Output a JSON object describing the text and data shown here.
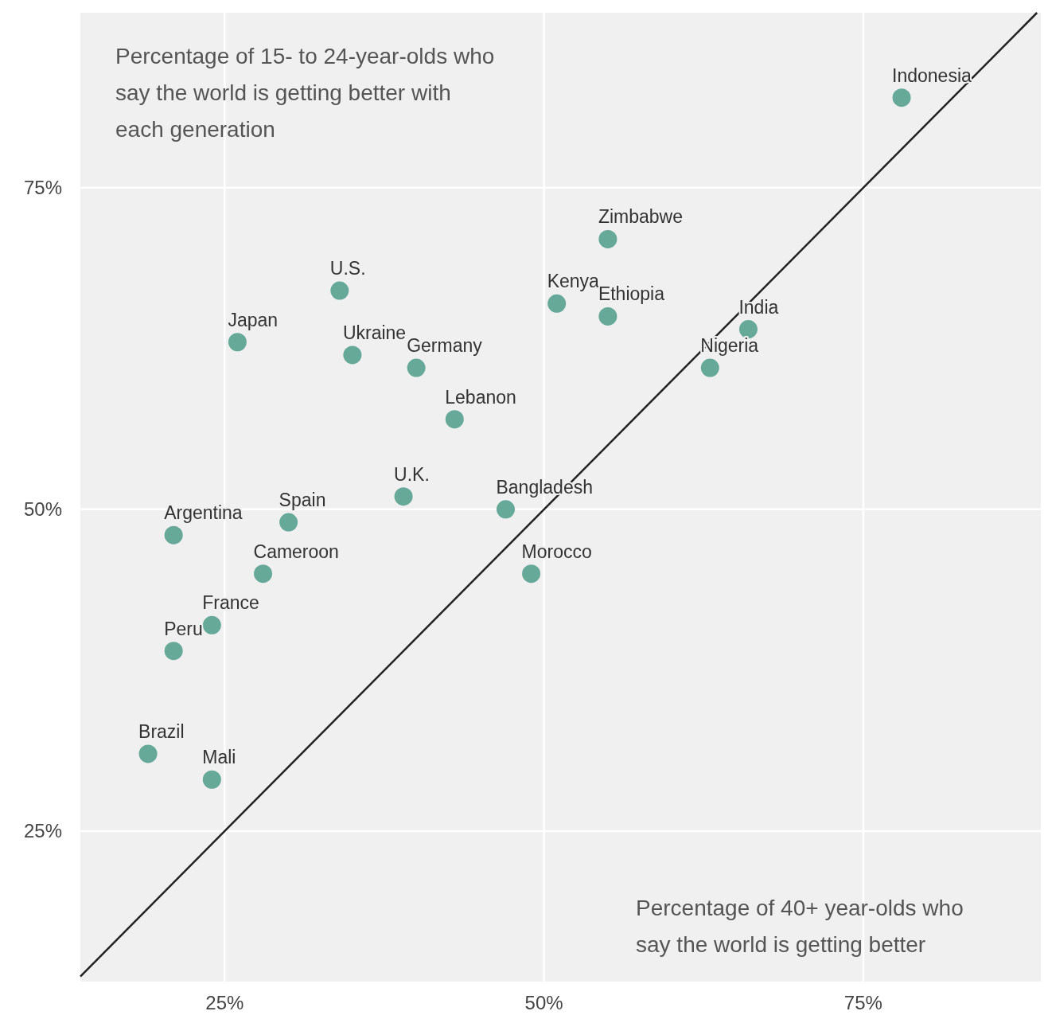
{
  "chart_data": {
    "type": "scatter",
    "xlabel": "Percentage of 40+ year-olds who say the world is getting better",
    "ylabel": "Percentage of 15- to 24-year-olds who say the world is getting better with each generation",
    "xlim": [
      13.7,
      88.9
    ],
    "ylim": [
      13.3,
      88.6
    ],
    "xticks": [
      {
        "value": 25,
        "label": "25%"
      },
      {
        "value": 50,
        "label": "50%"
      },
      {
        "value": 75,
        "label": "75%"
      }
    ],
    "yticks": [
      {
        "value": 25,
        "label": "25%"
      },
      {
        "value": 50,
        "label": "50%"
      },
      {
        "value": 75,
        "label": "75%"
      }
    ],
    "grid": true,
    "series": [
      {
        "marker": "circle",
        "color": "#66a999",
        "x": [
          78,
          55,
          34,
          51,
          55,
          66,
          26,
          35,
          40,
          63,
          43,
          39,
          47,
          30,
          21,
          49,
          28,
          24,
          21,
          19,
          24
        ],
        "values": [
          82,
          71,
          67,
          66,
          65,
          64,
          63,
          62,
          61,
          61,
          57,
          51,
          50,
          49,
          48,
          45,
          45,
          41,
          39,
          31,
          29
        ]
      },
      {
        "type": "line",
        "color": "#222222",
        "x": [
          13.7,
          88.6
        ],
        "values": [
          13.7,
          88.6
        ]
      }
    ],
    "annotations": [
      {
        "text": "Indonesia",
        "x": 78,
        "y": 82
      },
      {
        "text": "Zimbabwe",
        "x": 55,
        "y": 71
      },
      {
        "text": "U.S.",
        "x": 34,
        "y": 67
      },
      {
        "text": "Kenya",
        "x": 51,
        "y": 66
      },
      {
        "text": "Ethiopia",
        "x": 55,
        "y": 65
      },
      {
        "text": "India",
        "x": 66,
        "y": 64
      },
      {
        "text": "Japan",
        "x": 26,
        "y": 63
      },
      {
        "text": "Ukraine",
        "x": 35,
        "y": 62
      },
      {
        "text": "Germany",
        "x": 40,
        "y": 61
      },
      {
        "text": "Nigeria",
        "x": 63,
        "y": 61
      },
      {
        "text": "Lebanon",
        "x": 43,
        "y": 57
      },
      {
        "text": "U.K.",
        "x": 39,
        "y": 51
      },
      {
        "text": "Bangladesh",
        "x": 47,
        "y": 50
      },
      {
        "text": "Spain",
        "x": 30,
        "y": 49
      },
      {
        "text": "Argentina",
        "x": 21,
        "y": 48
      },
      {
        "text": "Morocco",
        "x": 49,
        "y": 45
      },
      {
        "text": "Cameroon",
        "x": 28,
        "y": 45
      },
      {
        "text": "France",
        "x": 24,
        "y": 41
      },
      {
        "text": "Peru",
        "x": 21,
        "y": 39
      },
      {
        "text": "Brazil",
        "x": 19,
        "y": 31
      },
      {
        "text": "Mali",
        "x": 24,
        "y": 29
      }
    ]
  }
}
